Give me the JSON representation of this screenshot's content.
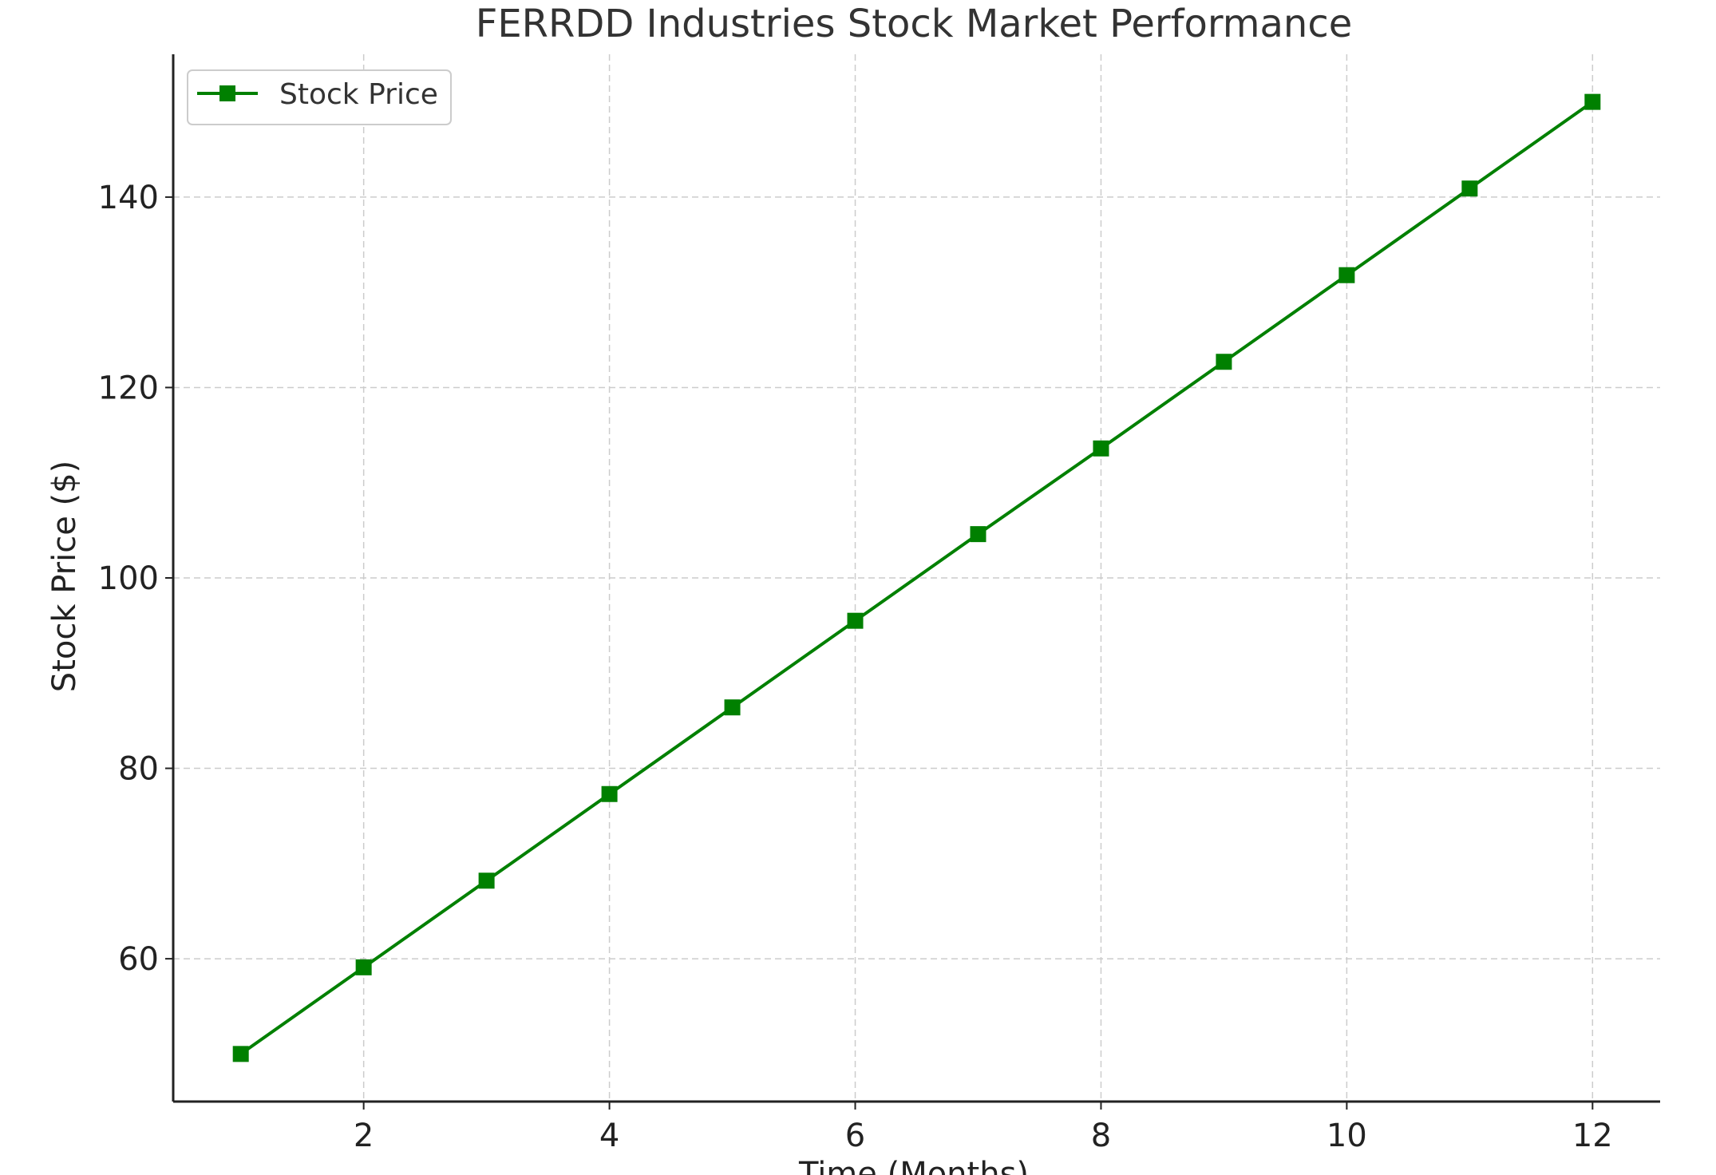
{
  "chart_data": {
    "type": "line",
    "title": "FERRDD Industries Stock Market Performance",
    "xlabel": "Time (Months)",
    "ylabel": "Stock Price ($)",
    "x": [
      1,
      2,
      3,
      4,
      5,
      6,
      7,
      8,
      9,
      10,
      11,
      12
    ],
    "series": [
      {
        "name": "Stock Price",
        "values": [
          50,
          59.1,
          68.2,
          77.3,
          86.4,
          95.5,
          104.6,
          113.6,
          122.7,
          131.8,
          140.9,
          150
        ],
        "color": "#008000",
        "marker": "square"
      }
    ],
    "xlim": [
      0.45,
      12.55
    ],
    "ylim": [
      45,
      155
    ],
    "xticks": [
      2,
      4,
      6,
      8,
      10,
      12
    ],
    "yticks": [
      60,
      80,
      100,
      120,
      140
    ],
    "grid": true,
    "legend_position": "top-left"
  }
}
